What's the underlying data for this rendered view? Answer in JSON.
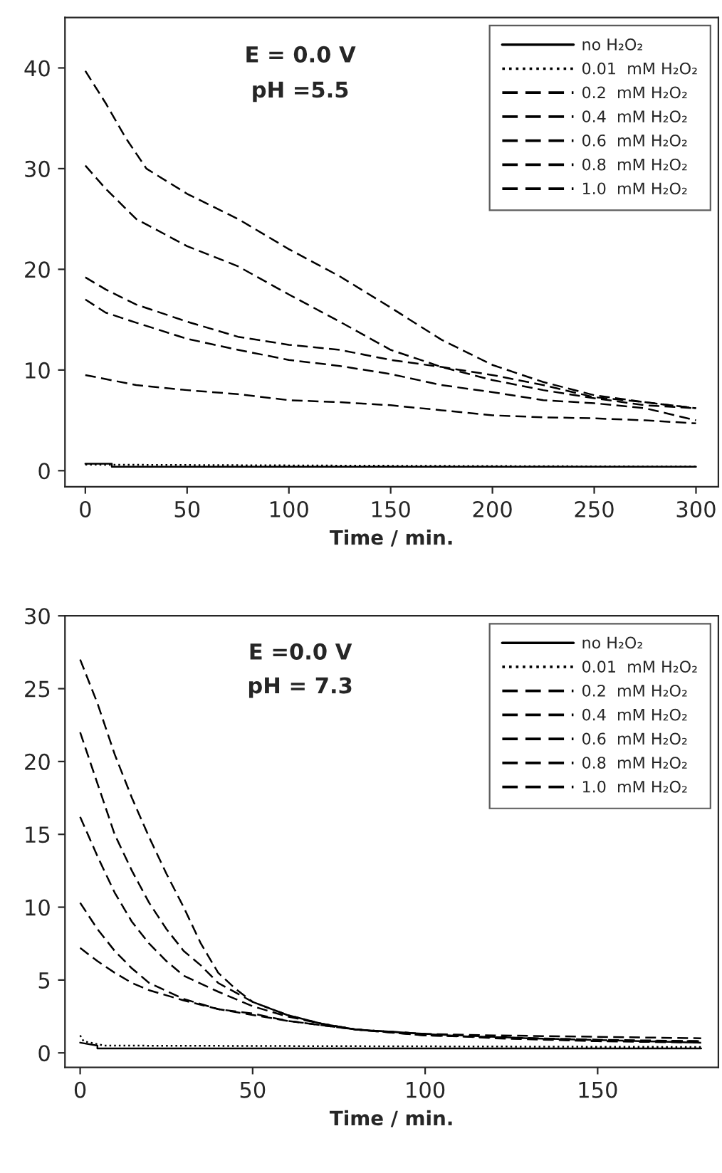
{
  "chart_data": [
    {
      "type": "line",
      "xlabel": "Time / min.",
      "xlim": [
        -10,
        311
      ],
      "xticks": [
        0,
        50,
        100,
        150,
        200,
        250,
        300
      ],
      "ylim": [
        -1.6,
        45
      ],
      "yticks": [
        0,
        10,
        20,
        30,
        40
      ],
      "grid": false,
      "legend": "top right",
      "marker": "none",
      "annotations": [
        "E = 0.0 V",
        "pH =5.5"
      ],
      "series": [
        {
          "name": "no H₂O₂",
          "color": "#000000",
          "line_style": "solid",
          "x": [
            0,
            13,
            13,
            300
          ],
          "values": [
            0.7,
            0.7,
            0.4,
            0.4
          ]
        },
        {
          "name": "0.01  mM H₂O₂",
          "color": "#000000",
          "line_style": "dotted",
          "x": [
            0,
            130,
            300
          ],
          "values": [
            0.6,
            0.5,
            0.4
          ]
        },
        {
          "name": "0.2  mM H₂O₂",
          "color": "#000000",
          "line_style": "dashed",
          "x": [
            0,
            25,
            50,
            75,
            100,
            125,
            150,
            175,
            200,
            225,
            250,
            275,
            300
          ],
          "values": [
            9.5,
            8.5,
            8,
            7.6,
            7,
            6.8,
            6.5,
            6,
            5.5,
            5.3,
            5.2,
            5,
            4.7
          ]
        },
        {
          "name": "0.4  mM H₂O₂",
          "color": "#000000",
          "line_style": "dashed",
          "x": [
            0,
            10,
            25,
            50,
            75,
            100,
            125,
            150,
            175,
            200,
            225,
            250,
            275,
            300
          ],
          "values": [
            17,
            15.7,
            14.7,
            13.1,
            12,
            11,
            10.4,
            9.6,
            8.5,
            7.8,
            7,
            6.7,
            6.2,
            5
          ]
        },
        {
          "name": "0.6  mM H₂O₂",
          "color": "#000000",
          "line_style": "dashed",
          "x": [
            0,
            10,
            25,
            50,
            75,
            100,
            125,
            150,
            175,
            200,
            225,
            250,
            275,
            300
          ],
          "values": [
            19.2,
            18,
            16.5,
            14.8,
            13.3,
            12.5,
            12,
            11,
            10.3,
            9.5,
            8.5,
            7.3,
            6.8,
            6.2
          ]
        },
        {
          "name": "0.8  mM H₂O₂",
          "color": "#000000",
          "line_style": "dashed",
          "x": [
            0,
            10,
            25,
            50,
            75,
            100,
            125,
            150,
            175,
            200,
            225,
            250,
            275,
            300
          ],
          "values": [
            30.3,
            28,
            25,
            22.3,
            20.3,
            17.5,
            14.8,
            12,
            10.3,
            9,
            8,
            7.2,
            6.5,
            6.2
          ]
        },
        {
          "name": "1.0  mM H₂O₂",
          "color": "#000000",
          "line_style": "dashed",
          "x": [
            0,
            10,
            20,
            30,
            50,
            75,
            100,
            125,
            150,
            175,
            200,
            225,
            250,
            275,
            300
          ],
          "values": [
            39.7,
            36.5,
            33,
            30,
            27.5,
            25,
            22,
            19.3,
            16.2,
            13,
            10.5,
            8.8,
            7.5,
            6.8,
            6.2
          ]
        }
      ]
    },
    {
      "type": "line",
      "xlabel": "Time / min.",
      "xlim": [
        -4.4,
        185
      ],
      "xticks": [
        0,
        50,
        100,
        150
      ],
      "ylim": [
        -1,
        30
      ],
      "yticks": [
        0,
        5,
        10,
        15,
        20,
        25,
        30
      ],
      "grid": false,
      "legend": "top right",
      "marker": "none",
      "annotations": [
        "E =0.0 V",
        "pH = 7.3"
      ],
      "series": [
        {
          "name": "no H₂O₂",
          "color": "#000000",
          "line_style": "solid",
          "x": [
            0,
            5,
            5,
            180
          ],
          "values": [
            0.7,
            0.5,
            0.3,
            0.3
          ]
        },
        {
          "name": "0.01  mM H₂O₂",
          "color": "#000000",
          "line_style": "dotted",
          "x": [
            0,
            1,
            7,
            180
          ],
          "values": [
            1.2,
            0.8,
            0.5,
            0.4
          ]
        },
        {
          "name": "0.2  mM H₂O₂",
          "color": "#000000",
          "line_style": "dashed",
          "x": [
            0,
            5,
            10,
            15,
            20,
            30,
            40,
            50,
            60,
            80,
            100,
            150,
            180
          ],
          "values": [
            7.2,
            6.3,
            5.5,
            4.8,
            4.3,
            3.6,
            3,
            2.7,
            2.2,
            1.6,
            1.2,
            0.9,
            0.8
          ]
        },
        {
          "name": "0.4  mM H₂O₂",
          "color": "#000000",
          "line_style": "dashed",
          "x": [
            0,
            5,
            10,
            15,
            20,
            30,
            40,
            50,
            60,
            80,
            100,
            130,
            180
          ],
          "values": [
            10.3,
            8.5,
            7,
            5.8,
            4.8,
            3.7,
            3,
            2.6,
            2.2,
            1.6,
            1.3,
            1,
            0.7
          ]
        },
        {
          "name": "0.6  mM H₂O₂",
          "color": "#000000",
          "line_style": "dashed",
          "x": [
            0,
            5,
            10,
            15,
            20,
            25,
            30,
            40,
            50,
            60,
            70,
            80,
            100,
            130,
            150,
            180
          ],
          "values": [
            16.2,
            13.5,
            11,
            9,
            7.5,
            6.3,
            5.3,
            4.2,
            3.2,
            2.5,
            2,
            1.6,
            1.2,
            1,
            0.8,
            0.8
          ]
        },
        {
          "name": "0.8  mM H₂O₂",
          "color": "#000000",
          "line_style": "dashed",
          "x": [
            0,
            5,
            10,
            15,
            20,
            25,
            30,
            35,
            40,
            50,
            60,
            70,
            80,
            100,
            120,
            150,
            180
          ],
          "values": [
            22,
            18.5,
            15,
            12.5,
            10.3,
            8.5,
            7,
            6,
            4.8,
            3.5,
            2.6,
            2,
            1.6,
            1.3,
            1,
            0.8,
            0.7
          ]
        },
        {
          "name": "1.0  mM H₂O₂",
          "color": "#000000",
          "line_style": "dashed",
          "x": [
            0,
            5,
            10,
            15,
            20,
            25,
            30,
            35,
            40,
            45,
            50,
            60,
            70,
            80,
            100,
            120,
            150,
            180
          ],
          "values": [
            27,
            24,
            20.5,
            17.5,
            14.8,
            12.3,
            10,
            7.5,
            5.5,
            4.4,
            3.5,
            2.6,
            2,
            1.6,
            1.3,
            1.2,
            1.1,
            1
          ]
        }
      ]
    }
  ]
}
